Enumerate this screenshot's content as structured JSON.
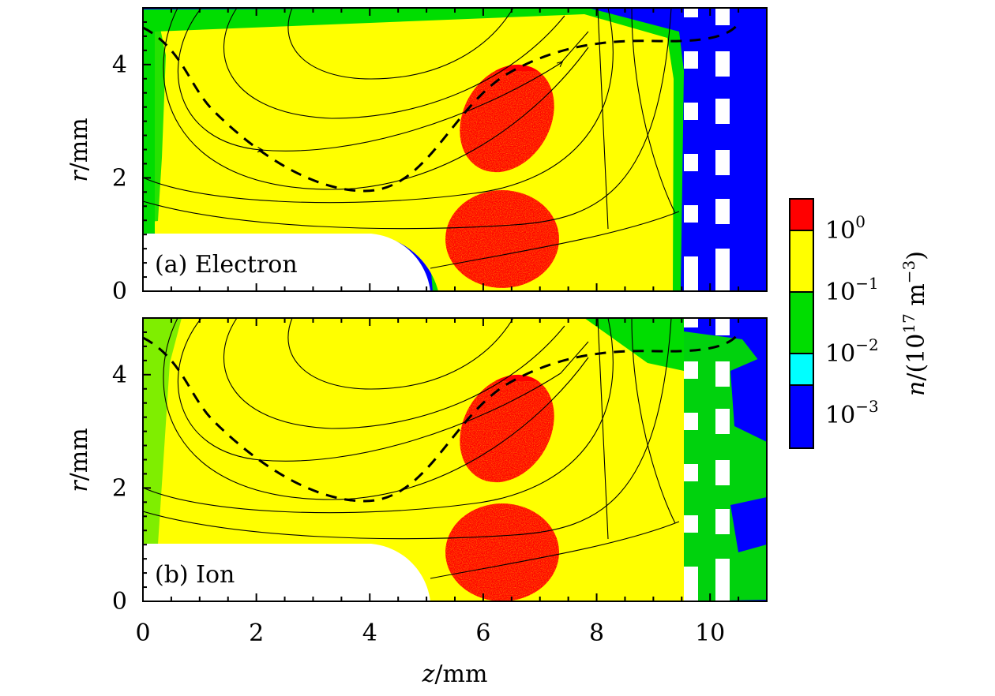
{
  "colors": {
    "red": "#ff0000",
    "yellow": "#ffff00",
    "green": "#00dd00",
    "cyan": "#00ffff",
    "blue": "#0000ff",
    "white": "#ffffff",
    "black": "#000000"
  },
  "chart_data": [
    {
      "type": "heatmap",
      "panel_label": "(a) Electron",
      "xlabel": "z/mm",
      "ylabel": "r/mm",
      "xlim": [
        0,
        11
      ],
      "ylim": [
        0,
        5
      ],
      "xticks": [
        "0",
        "2",
        "4",
        "6",
        "8",
        "10"
      ],
      "yticks": [
        "0",
        "2",
        "4"
      ],
      "regions": [
        {
          "name": "high-density-lobe-upper",
          "level": "red",
          "center_z": 6.5,
          "center_r": 3.0
        },
        {
          "name": "high-density-lobe-lower",
          "level": "red",
          "center_z": 6.3,
          "center_r": 0.9
        },
        {
          "name": "vacuum-region",
          "level": "blue",
          "z_range": [
            9.5,
            11
          ]
        }
      ],
      "separatrix_min": {
        "z": 3.7,
        "r": 1.75
      }
    },
    {
      "type": "heatmap",
      "panel_label": "(b) Ion",
      "xlabel": "z/mm",
      "ylabel": "r/mm",
      "xlim": [
        0,
        11
      ],
      "ylim": [
        0,
        5
      ],
      "xticks": [
        "0",
        "2",
        "4",
        "6",
        "8",
        "10"
      ],
      "yticks": [
        "0",
        "2",
        "4"
      ],
      "regions": [
        {
          "name": "high-density-lobe-upper",
          "level": "red",
          "center_z": 6.5,
          "center_r": 3.0
        },
        {
          "name": "high-density-lobe-lower",
          "level": "red",
          "center_z": 6.3,
          "center_r": 0.9
        },
        {
          "name": "plume-region",
          "level": "green",
          "z_range": [
            9.5,
            11
          ]
        }
      ],
      "separatrix_min": {
        "z": 3.7,
        "r": 1.75
      }
    }
  ],
  "colorbar": {
    "label": "n/(10^17 m^-3)",
    "tick_labels": [
      "10^0",
      "10^-1",
      "10^-2",
      "10^-3"
    ],
    "levels": [
      "red",
      "yellow",
      "green",
      "cyan",
      "blue"
    ]
  }
}
